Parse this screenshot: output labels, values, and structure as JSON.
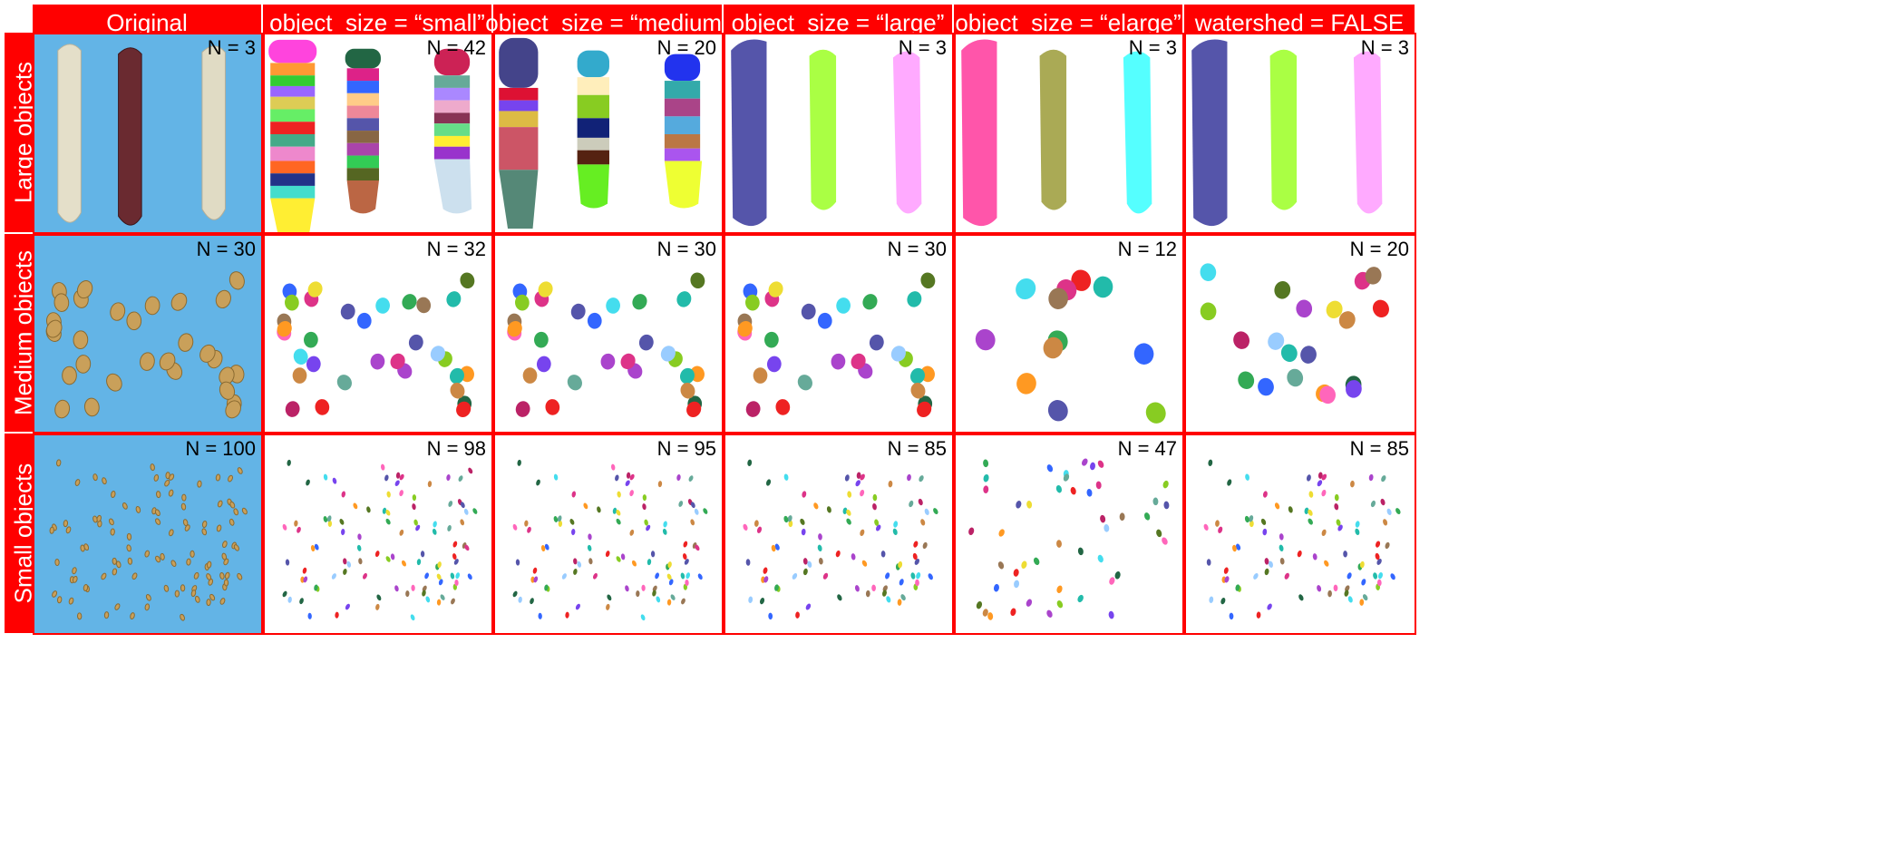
{
  "column_headers": [
    "Original",
    "object_size = “small”",
    "object_size = “medium”",
    "object_size = “large”",
    "object_size = “elarge”",
    "watershed = FALSE"
  ],
  "row_labels": [
    "Large objects",
    "Medium objects",
    "Small objects"
  ],
  "counts": [
    [
      "N = 3",
      "N = 42",
      "N = 20",
      "N = 3",
      "N = 3",
      "N = 3"
    ],
    [
      "N = 30",
      "N = 32",
      "N = 30",
      "N = 30",
      "N = 12",
      "N = 20"
    ],
    [
      "N = 100",
      "N = 98",
      "N = 95",
      "N = 85",
      "N = 47",
      "N = 85"
    ]
  ],
  "colors": {
    "grid_red": "#ff0000",
    "photo_background": "#63b4e6",
    "large_ears": [
      "#5555aa",
      "#aaff44",
      "#ffaaff",
      "#ff55aa",
      "#aaaa55",
      "#55ffff"
    ],
    "seed_tan": "#c9a05a"
  }
}
